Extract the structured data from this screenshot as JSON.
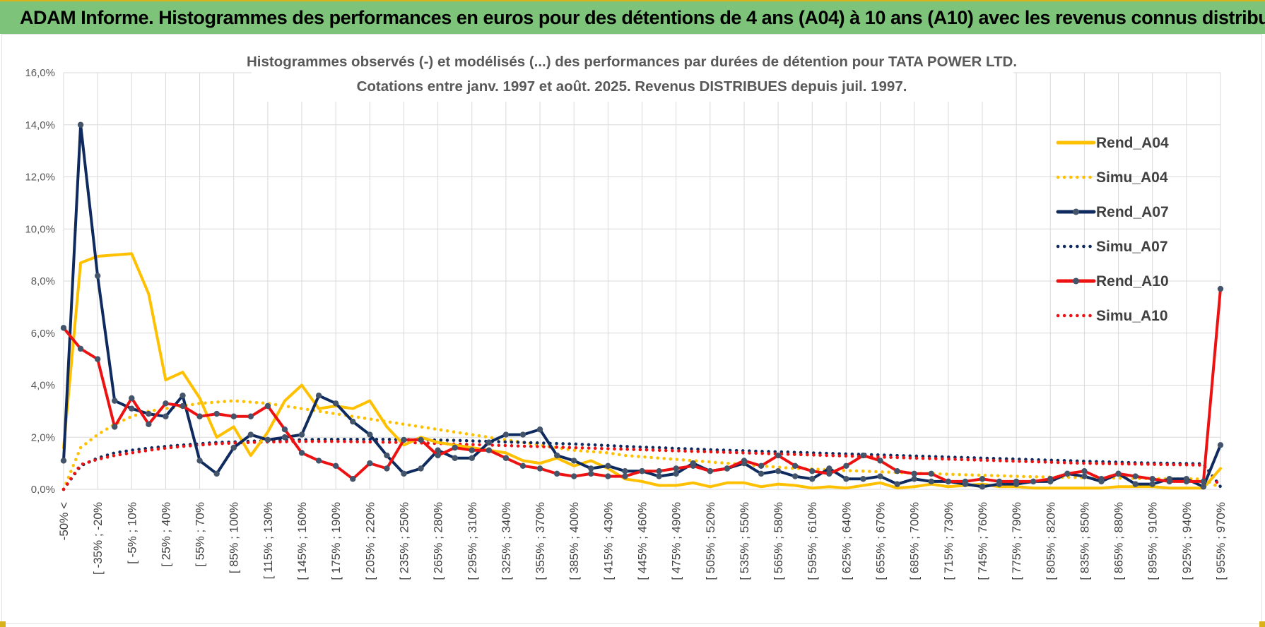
{
  "banner": {
    "title": "ADAM Informe. Histogrammes des performances en euros pour des détentions de 4 ans (A04) à 10 ans (A10) avec les revenus connus distribués"
  },
  "colors": {
    "gold": "#FFC000",
    "navy": "#0E2A5E",
    "red": "#EE1111",
    "banner_green": "#7DC47A"
  },
  "chart_data": {
    "type": "line",
    "title_lines": [
      "Histogrammes observés (-) et modélisés (...) des performances par durées de détention pour TATA POWER LTD.",
      "Cotations entre janv. 1997 et août. 2025. Revenus DISTRIBUES depuis juil. 1997."
    ],
    "xlabel": "",
    "ylabel": "",
    "ylim": [
      0,
      0.16
    ],
    "y_ticks": [
      "0,0%",
      "2,0%",
      "4,0%",
      "6,0%",
      "8,0%",
      "10,0%",
      "12,0%",
      "14,0%",
      "16,0%"
    ],
    "grid": true,
    "legend_position": "right",
    "x_tick_labels": [
      "-50% <",
      "[ -35% ; -20%",
      "[ -5% ; 10%",
      "[ 25% ; 40%",
      "[ 55% ; 70%",
      "[ 85% ; 100%",
      "[ 115% ; 130%",
      "[ 145% ; 160%",
      "[ 175% ; 190%",
      "[ 205% ; 220%",
      "[ 235% ; 250%",
      "[ 265% ; 280%",
      "[ 295% ; 310%",
      "[ 325% ; 340%",
      "[ 355% ; 370%",
      "[ 385% ; 400%",
      "[ 415% ; 430%",
      "[ 445% ; 460%",
      "[ 475% ; 490%",
      "[ 505% ; 520%",
      "[ 535% ; 550%",
      "[ 565% ; 580%",
      "[ 595% ; 610%",
      "[ 625% ; 640%",
      "[ 655% ; 670%",
      "[ 685% ; 700%",
      "[ 715% ; 730%",
      "[ 745% ; 760%",
      "[ 775% ; 790%",
      "[ 805% ; 820%",
      "[ 835% ; 850%",
      "[ 865% ; 880%",
      "[ 895% ; 910%",
      "[ 925% ; 940%",
      "[ 955% ; 970%"
    ],
    "n_classes": 69,
    "series": [
      {
        "name": "Rend_A04",
        "color": "#FFC000",
        "style": "solid",
        "markers": false,
        "values": [
          0.016,
          0.087,
          0.0895,
          0.09,
          0.0905,
          0.075,
          0.042,
          0.045,
          0.035,
          0.02,
          0.024,
          0.013,
          0.022,
          0.034,
          0.04,
          0.031,
          0.032,
          0.031,
          0.034,
          0.024,
          0.017,
          0.02,
          0.018,
          0.017,
          0.016,
          0.015,
          0.014,
          0.011,
          0.01,
          0.012,
          0.009,
          0.011,
          0.008,
          0.004,
          0.003,
          0.0015,
          0.0015,
          0.0025,
          0.001,
          0.0025,
          0.0025,
          0.001,
          0.002,
          0.0015,
          0.0005,
          0.001,
          0.0005,
          0.0015,
          0.0025,
          0.0005,
          0.001,
          0.002,
          0.001,
          0.0015,
          0.002,
          0.001,
          0.001,
          0.0005,
          0.0005,
          0.0005,
          0.0005,
          0.0005,
          0.001,
          0.001,
          0.001,
          0.0005,
          0.0005,
          0.0005,
          0.008
        ]
      },
      {
        "name": "Simu_A04",
        "color": "#FFC000",
        "style": "dotted",
        "markers": false,
        "values": [
          0.0,
          0.016,
          0.021,
          0.025,
          0.028,
          0.03,
          0.031,
          0.032,
          0.033,
          0.0335,
          0.034,
          0.0335,
          0.033,
          0.032,
          0.031,
          0.03,
          0.029,
          0.028,
          0.027,
          0.026,
          0.025,
          0.024,
          0.023,
          0.022,
          0.021,
          0.02,
          0.019,
          0.018,
          0.017,
          0.016,
          0.015,
          0.0145,
          0.014,
          0.013,
          0.0125,
          0.012,
          0.0115,
          0.011,
          0.0105,
          0.01,
          0.0095,
          0.009,
          0.0085,
          0.008,
          0.0078,
          0.0075,
          0.0072,
          0.007,
          0.0067,
          0.0065,
          0.0062,
          0.006,
          0.0058,
          0.0056,
          0.0054,
          0.0052,
          0.005,
          0.0048,
          0.0047,
          0.0046,
          0.0045,
          0.0044,
          0.0043,
          0.0042,
          0.0041,
          0.004,
          0.004,
          0.004,
          0.0005
        ]
      },
      {
        "name": "Rend_A07",
        "color": "#0E2A5E",
        "style": "solid",
        "markers": true,
        "values": [
          0.011,
          0.14,
          0.082,
          0.034,
          0.031,
          0.029,
          0.028,
          0.036,
          0.011,
          0.006,
          0.016,
          0.021,
          0.019,
          0.02,
          0.021,
          0.036,
          0.033,
          0.026,
          0.021,
          0.013,
          0.006,
          0.008,
          0.015,
          0.012,
          0.012,
          0.018,
          0.021,
          0.021,
          0.023,
          0.013,
          0.011,
          0.008,
          0.009,
          0.007,
          0.007,
          0.005,
          0.006,
          0.01,
          0.007,
          0.008,
          0.01,
          0.006,
          0.007,
          0.005,
          0.004,
          0.008,
          0.004,
          0.004,
          0.005,
          0.002,
          0.004,
          0.003,
          0.003,
          0.002,
          0.001,
          0.002,
          0.002,
          0.003,
          0.003,
          0.006,
          0.005,
          0.003,
          0.006,
          0.002,
          0.002,
          0.004,
          0.004,
          0.001,
          0.017
        ]
      },
      {
        "name": "Simu_A07",
        "color": "#0E2A5E",
        "style": "dotted",
        "markers": false,
        "values": [
          0.0,
          0.009,
          0.012,
          0.014,
          0.015,
          0.0158,
          0.0165,
          0.017,
          0.0175,
          0.018,
          0.0182,
          0.0185,
          0.0187,
          0.019,
          0.019,
          0.0192,
          0.0192,
          0.0192,
          0.0192,
          0.0192,
          0.0191,
          0.019,
          0.0189,
          0.0188,
          0.0186,
          0.0184,
          0.0182,
          0.018,
          0.0178,
          0.0176,
          0.0174,
          0.0171,
          0.0168,
          0.0165,
          0.0162,
          0.016,
          0.0157,
          0.0155,
          0.0152,
          0.015,
          0.0148,
          0.0146,
          0.0144,
          0.0142,
          0.014,
          0.0138,
          0.0136,
          0.0134,
          0.0132,
          0.013,
          0.0128,
          0.0126,
          0.0124,
          0.0122,
          0.012,
          0.0118,
          0.0116,
          0.0114,
          0.0112,
          0.011,
          0.0108,
          0.0106,
          0.0104,
          0.0102,
          0.0101,
          0.01,
          0.0099,
          0.0098,
          0.001
        ]
      },
      {
        "name": "Rend_A10",
        "color": "#EE1111",
        "style": "solid",
        "markers": true,
        "values": [
          0.062,
          0.054,
          0.05,
          0.024,
          0.035,
          0.025,
          0.033,
          0.032,
          0.028,
          0.029,
          0.028,
          0.028,
          0.032,
          0.023,
          0.014,
          0.011,
          0.009,
          0.004,
          0.01,
          0.008,
          0.019,
          0.019,
          0.013,
          0.016,
          0.015,
          0.015,
          0.012,
          0.009,
          0.008,
          0.006,
          0.005,
          0.006,
          0.005,
          0.005,
          0.007,
          0.007,
          0.008,
          0.009,
          0.007,
          0.008,
          0.011,
          0.009,
          0.013,
          0.009,
          0.007,
          0.006,
          0.009,
          0.013,
          0.011,
          0.007,
          0.006,
          0.006,
          0.003,
          0.003,
          0.004,
          0.003,
          0.003,
          0.003,
          0.004,
          0.006,
          0.007,
          0.004,
          0.006,
          0.005,
          0.004,
          0.003,
          0.003,
          0.003,
          0.077
        ]
      },
      {
        "name": "Simu_A10",
        "color": "#EE1111",
        "style": "dotted",
        "markers": false,
        "values": [
          0.0,
          0.0095,
          0.0115,
          0.013,
          0.014,
          0.015,
          0.0158,
          0.0165,
          0.017,
          0.0175,
          0.0178,
          0.018,
          0.0182,
          0.0183,
          0.0184,
          0.0184,
          0.0184,
          0.0183,
          0.0182,
          0.0181,
          0.018,
          0.0178,
          0.0176,
          0.0174,
          0.0172,
          0.017,
          0.0168,
          0.0166,
          0.0164,
          0.0162,
          0.016,
          0.0158,
          0.0156,
          0.0154,
          0.0152,
          0.015,
          0.0148,
          0.0146,
          0.0144,
          0.0142,
          0.014,
          0.0138,
          0.0136,
          0.0134,
          0.0132,
          0.013,
          0.0128,
          0.0126,
          0.0124,
          0.0122,
          0.012,
          0.0118,
          0.0116,
          0.0114,
          0.0112,
          0.011,
          0.0108,
          0.0106,
          0.0104,
          0.0102,
          0.01,
          0.0099,
          0.0098,
          0.0097,
          0.0096,
          0.0095,
          0.0094,
          0.0093,
          0.001
        ]
      }
    ]
  }
}
